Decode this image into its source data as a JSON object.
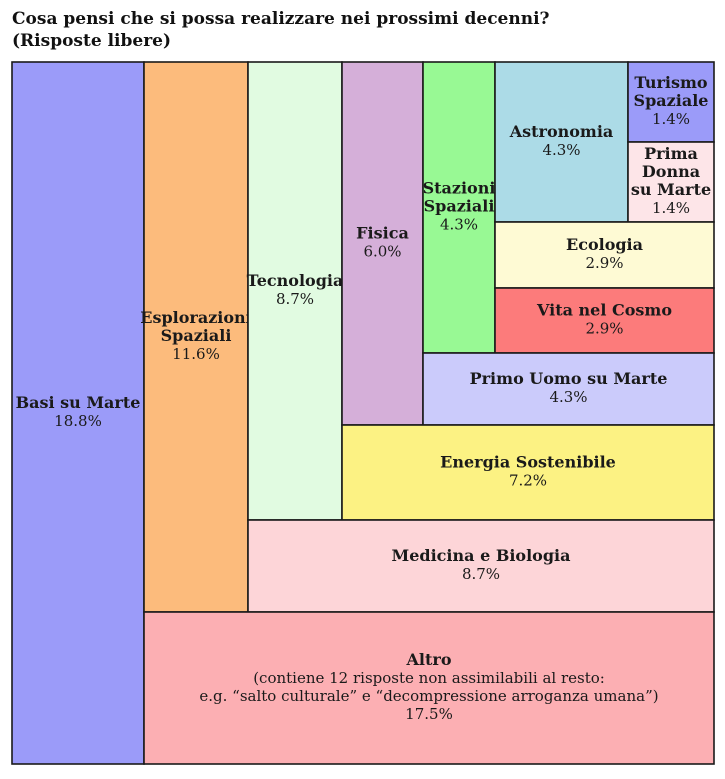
{
  "title_lines": [
    "Cosa pensi che si possa realizzare nei prossimi decenni?",
    "(Risposte libere)"
  ],
  "chart_data": {
    "type": "treemap",
    "title": "Cosa pensi che si possa realizzare nei prossimi decenni?",
    "subtitle": "(Risposte libere)",
    "unit": "%",
    "items": [
      {
        "id": "basi-su-marte",
        "label_lines": [
          "Basi su Marte"
        ],
        "value": 18.8,
        "value_text": "18.8%",
        "color": "#9b9bf9"
      },
      {
        "id": "esplorazioni-spaziali",
        "label_lines": [
          "Esplorazioni",
          "Spaziali"
        ],
        "value": 11.6,
        "value_text": "11.6%",
        "color": "#fcbb7c"
      },
      {
        "id": "tecnologia",
        "label_lines": [
          "Tecnologia"
        ],
        "value": 8.7,
        "value_text": "8.7%",
        "color": "#e1fbe1"
      },
      {
        "id": "fisica",
        "label_lines": [
          "Fisica"
        ],
        "value": 6.0,
        "value_text": "6.0%",
        "color": "#d5afd9"
      },
      {
        "id": "stazioni-spaziali",
        "label_lines": [
          "Stazioni",
          "Spaziali"
        ],
        "value": 4.3,
        "value_text": "4.3%",
        "color": "#98f994"
      },
      {
        "id": "astronomia",
        "label_lines": [
          "Astronomia"
        ],
        "value": 4.3,
        "value_text": "4.3%",
        "color": "#acdbe7"
      },
      {
        "id": "turismo-spaziale",
        "label_lines": [
          "Turismo",
          "Spaziale"
        ],
        "value": 1.4,
        "value_text": "1.4%",
        "color": "#9b9bf9"
      },
      {
        "id": "prima-donna-su-marte",
        "label_lines": [
          "Prima",
          "Donna",
          "su Marte"
        ],
        "value": 1.4,
        "value_text": "1.4%",
        "color": "#fde5e8"
      },
      {
        "id": "ecologia",
        "label_lines": [
          "Ecologia"
        ],
        "value": 2.9,
        "value_text": "2.9%",
        "color": "#fefad4"
      },
      {
        "id": "vita-nel-cosmo",
        "label_lines": [
          "Vita nel Cosmo"
        ],
        "value": 2.9,
        "value_text": "2.9%",
        "color": "#fc7b7b"
      },
      {
        "id": "primo-uomo-su-marte",
        "label_lines": [
          "Primo Uomo su Marte"
        ],
        "value": 4.3,
        "value_text": "4.3%",
        "color": "#cbcbfb"
      },
      {
        "id": "energia-sostenibile",
        "label_lines": [
          "Energia Sostenibile"
        ],
        "value": 7.2,
        "value_text": "7.2%",
        "color": "#fcf283"
      },
      {
        "id": "medicina-e-biologia",
        "label_lines": [
          "Medicina e Biologia"
        ],
        "value": 8.7,
        "value_text": "8.7%",
        "color": "#fdd5d8"
      },
      {
        "id": "altro",
        "label_lines": [
          "Altro"
        ],
        "note_lines": [
          "(contiene 12 risposte non assimilabili al resto:",
          "e.g.  “salto culturale” e “decompressione arroganza umana”)"
        ],
        "value": 17.5,
        "value_text": "17.5%",
        "color": "#fcafb3"
      }
    ]
  }
}
